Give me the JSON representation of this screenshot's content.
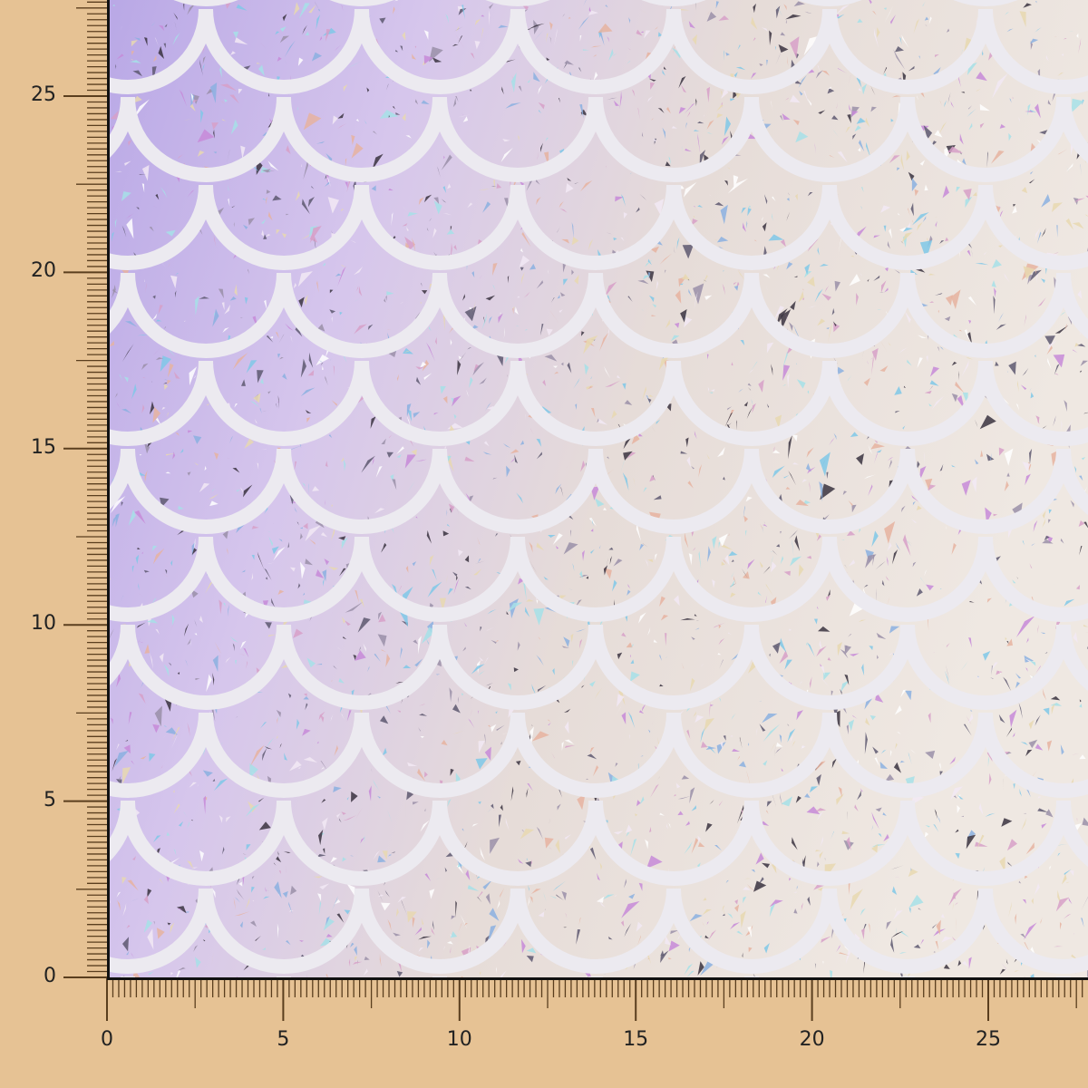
{
  "image": {
    "subject": "holographic mermaid scale fabric swatch",
    "background_color": "#E6C294",
    "ruler_color": "#5A3E1E",
    "scale_line_color": "#ECEAF0"
  },
  "rulers": {
    "left": {
      "labels": [
        "0",
        "5",
        "10",
        "15",
        "20",
        "25"
      ]
    },
    "bottom": {
      "labels": [
        "0",
        "5",
        "10",
        "15",
        "20",
        "25"
      ]
    }
  }
}
